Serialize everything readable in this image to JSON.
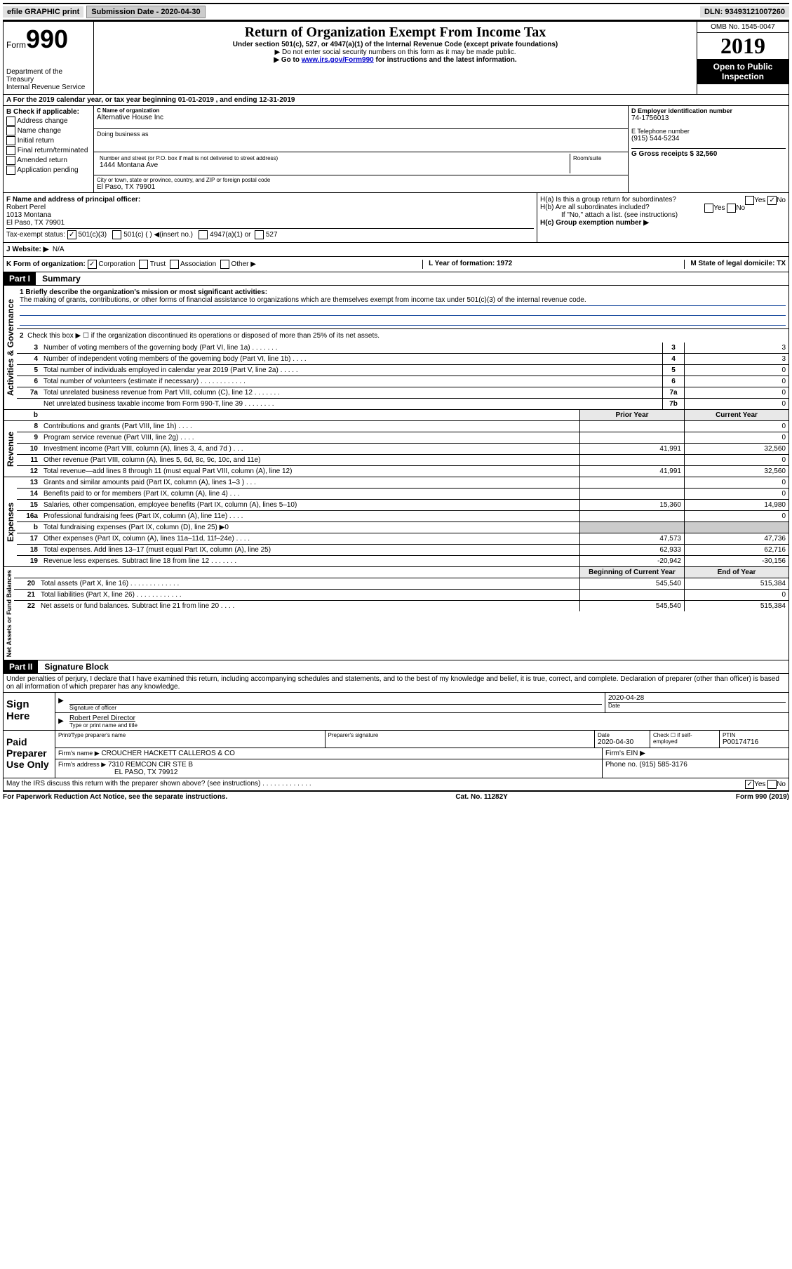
{
  "topbar": {
    "efile": "efile GRAPHIC print",
    "submission_label": "Submission Date - 2020-04-30",
    "dln_label": "DLN: 93493121007260"
  },
  "header": {
    "form_label": "Form",
    "form_num": "990",
    "dept": "Department of the Treasury\nInternal Revenue Service",
    "title": "Return of Organization Exempt From Income Tax",
    "subtitle": "Under section 501(c), 527, or 4947(a)(1) of the Internal Revenue Code (except private foundations)",
    "note1": "▶ Do not enter social security numbers on this form as it may be made public.",
    "note2_pre": "▶ Go to ",
    "note2_link": "www.irs.gov/Form990",
    "note2_post": " for instructions and the latest information.",
    "omb": "OMB No. 1545-0047",
    "year": "2019",
    "open": "Open to Public Inspection"
  },
  "rowA": "A For the 2019 calendar year, or tax year beginning 01-01-2019   , and ending 12-31-2019",
  "boxB": {
    "header": "B Check if applicable:",
    "items": [
      "Address change",
      "Name change",
      "Initial return",
      "Final return/terminated",
      "Amended return",
      "Application pending"
    ]
  },
  "boxC": {
    "name_label": "C Name of organization",
    "name": "Alternative House Inc",
    "dba_label": "Doing business as",
    "addr_label": "Number and street (or P.O. box if mail is not delivered to street address)",
    "addr": "1444 Montana Ave",
    "room_label": "Room/suite",
    "city_label": "City or town, state or province, country, and ZIP or foreign postal code",
    "city": "El Paso, TX   79901"
  },
  "boxD": {
    "label": "D Employer identification number",
    "value": "74-1756013",
    "tel_label": "E Telephone number",
    "tel": "(915) 544-5234",
    "gross_label": "G Gross receipts $ 32,560"
  },
  "boxF": {
    "label": "F  Name and address of principal officer:",
    "name": "Robert Perel",
    "addr1": "1013 Montana",
    "addr2": "El Paso, TX   79901"
  },
  "boxH": {
    "ha": "H(a)  Is this a group return for subordinates?",
    "hb": "H(b)  Are all subordinates included?",
    "hb_note": "If \"No,\" attach a list. (see instructions)",
    "hc": "H(c)  Group exemption number ▶"
  },
  "taxExempt": "Tax-exempt status:",
  "taxOpts": [
    "501(c)(3)",
    "501(c) (  ) ◀(insert no.)",
    "4947(a)(1) or",
    "527"
  ],
  "rowJ": {
    "label": "J   Website: ▶",
    "val": "N/A"
  },
  "rowK": {
    "label": "K Form of organization:",
    "opts": [
      "Corporation",
      "Trust",
      "Association",
      "Other ▶"
    ],
    "L": "L Year of formation: 1972",
    "M": "M State of legal domicile: TX"
  },
  "part1": {
    "header": "Part I",
    "title": "Summary",
    "line1_label": "1  Briefly describe the organization's mission or most significant activities:",
    "line1_text": "The making of grants, contributions, or other forms of financial assistance to organizations which are themselves exempt from income tax under 501(c)(3) of the internal revenue code.",
    "line2": "Check this box ▶ ☐ if the organization discontinued its operations or disposed of more than 25% of its net assets.",
    "sections": {
      "gov_label": "Activities & Governance",
      "rev_label": "Revenue",
      "exp_label": "Expenses",
      "net_label": "Net Assets or Fund Balances"
    },
    "col_prior": "Prior Year",
    "col_current": "Current Year",
    "col_begin": "Beginning of Current Year",
    "col_end": "End of Year",
    "lines_gov": [
      {
        "n": "3",
        "t": "Number of voting members of the governing body (Part VI, line 1a)   .    .    .    .    .    .    .",
        "box": "3",
        "val": "3"
      },
      {
        "n": "4",
        "t": "Number of independent voting members of the governing body (Part VI, line 1b)   .    .    .    .",
        "box": "4",
        "val": "3"
      },
      {
        "n": "5",
        "t": "Total number of individuals employed in calendar year 2019 (Part V, line 2a)   .    .    .    .    .",
        "box": "5",
        "val": "0"
      },
      {
        "n": "6",
        "t": "Total number of volunteers (estimate if necessary)    .    .    .    .    .    .    .    .    .    .    .    .",
        "box": "6",
        "val": "0"
      },
      {
        "n": "7a",
        "t": "Total unrelated business revenue from Part VIII, column (C), line 12   .    .    .    .    .    .    .",
        "box": "7a",
        "val": "0"
      },
      {
        "n": "",
        "t": "Net unrelated business taxable income from Form 990-T, line 39    .    .    .    .    .    .    .    .",
        "box": "7b",
        "val": "0"
      }
    ],
    "lines_rev": [
      {
        "n": "8",
        "t": "Contributions and grants (Part VIII, line 1h)   .    .    .    .",
        "p": "",
        "c": "0"
      },
      {
        "n": "9",
        "t": "Program service revenue (Part VIII, line 2g)   .    .    .    .",
        "p": "",
        "c": "0"
      },
      {
        "n": "10",
        "t": "Investment income (Part VIII, column (A), lines 3, 4, and 7d )    .    .    .",
        "p": "41,991",
        "c": "32,560"
      },
      {
        "n": "11",
        "t": "Other revenue (Part VIII, column (A), lines 5, 6d, 8c, 9c, 10c, and 11e)",
        "p": "",
        "c": "0"
      },
      {
        "n": "12",
        "t": "Total revenue—add lines 8 through 11 (must equal Part VIII, column (A), line 12)",
        "p": "41,991",
        "c": "32,560"
      }
    ],
    "lines_exp": [
      {
        "n": "13",
        "t": "Grants and similar amounts paid (Part IX, column (A), lines 1–3 )    .    .    .",
        "p": "",
        "c": "0"
      },
      {
        "n": "14",
        "t": "Benefits paid to or for members (Part IX, column (A), line 4)    .    .    .",
        "p": "",
        "c": "0"
      },
      {
        "n": "15",
        "t": "Salaries, other compensation, employee benefits (Part IX, column (A), lines 5–10)",
        "p": "15,360",
        "c": "14,980"
      },
      {
        "n": "16a",
        "t": "Professional fundraising fees (Part IX, column (A), line 11e)    .    .    .    .",
        "p": "",
        "c": "0"
      },
      {
        "n": "b",
        "t": "Total fundraising expenses (Part IX, column (D), line 25) ▶0",
        "p": "shaded",
        "c": "shaded"
      },
      {
        "n": "17",
        "t": "Other expenses (Part IX, column (A), lines 11a–11d, 11f–24e)    .    .    .    .",
        "p": "47,573",
        "c": "47,736"
      },
      {
        "n": "18",
        "t": "Total expenses. Add lines 13–17 (must equal Part IX, column (A), line 25)",
        "p": "62,933",
        "c": "62,716"
      },
      {
        "n": "19",
        "t": "Revenue less expenses. Subtract line 18 from line 12    .    .    .    .    .    .    .",
        "p": "-20,942",
        "c": "-30,156"
      }
    ],
    "lines_net": [
      {
        "n": "20",
        "t": "Total assets (Part X, line 16)    .    .    .    .    .    .    .    .    .    .    .    .    .",
        "p": "545,540",
        "c": "515,384"
      },
      {
        "n": "21",
        "t": "Total liabilities (Part X, line 26)   .    .    .    .    .    .    .    .    .    .    .    .",
        "p": "",
        "c": "0"
      },
      {
        "n": "22",
        "t": "Net assets or fund balances. Subtract line 21 from line 20    .    .    .    .",
        "p": "545,540",
        "c": "515,384"
      }
    ]
  },
  "part2": {
    "header": "Part II",
    "title": "Signature Block",
    "decl": "Under penalties of perjury, I declare that I have examined this return, including accompanying schedules and statements, and to the best of my knowledge and belief, it is true, correct, and complete. Declaration of preparer (other than officer) is based on all information of which preparer has any knowledge.",
    "sign_here": "Sign Here",
    "sig_officer": "Signature of officer",
    "sig_date": "2020-04-28",
    "date_label": "Date",
    "sig_name": "Robert Perel  Director",
    "sig_name_label": "Type or print name and title",
    "paid": "Paid Preparer Use Only",
    "prep_name_label": "Print/Type preparer's name",
    "prep_sig_label": "Preparer's signature",
    "prep_date": "2020-04-30",
    "check_self": "Check ☐ if self-employed",
    "ptin_label": "PTIN",
    "ptin": "P00174716",
    "firm_name_label": "Firm's name    ▶",
    "firm_name": "CROUCHER HACKETT CALLEROS & CO",
    "firm_ein_label": "Firm's EIN ▶",
    "firm_addr_label": "Firm's address ▶",
    "firm_addr1": "7310 REMCON CIR STE B",
    "firm_addr2": "EL PASO, TX   79912",
    "firm_phone_label": "Phone no. (915) 585-3176",
    "discuss": "May the IRS discuss this return with the preparer shown above? (see instructions)    .    .    .    .    .    .    .    .    .    .    .    .    ."
  },
  "footer": {
    "left": "For Paperwork Reduction Act Notice, see the separate instructions.",
    "center": "Cat. No. 11282Y",
    "right": "Form 990 (2019)"
  }
}
